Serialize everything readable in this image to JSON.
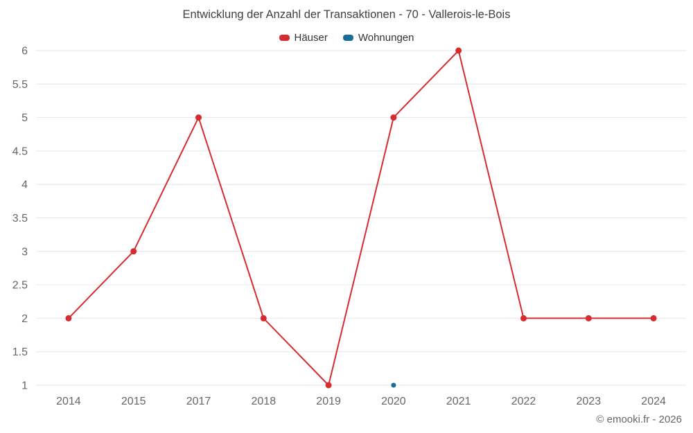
{
  "chart": {
    "title": "Entwicklung der Anzahl der Transaktionen - 70 - Vallerois-le-Bois",
    "footer": "© emooki.fr - 2026"
  },
  "chart_data": {
    "type": "line",
    "title": "Entwicklung der Anzahl der Transaktionen - 70 - Vallerois-le-Bois",
    "categories": [
      "2014",
      "2015",
      "2017",
      "2018",
      "2019",
      "2020",
      "2021",
      "2022",
      "2023",
      "2024"
    ],
    "series": [
      {
        "name": "Häuser",
        "color": "#d62b2f",
        "values": [
          2,
          3,
          5,
          2,
          1,
          5,
          6,
          2,
          2,
          2
        ]
      },
      {
        "name": "Wohnungen",
        "color": "#1b6d99",
        "values": [
          null,
          null,
          null,
          null,
          null,
          1,
          null,
          null,
          null,
          null
        ]
      }
    ],
    "xlabel": "",
    "ylabel": "",
    "ylim": [
      1,
      6
    ],
    "ytick_step": 0.5,
    "grid": true,
    "legend_position": "top",
    "grid_color": "#e6e6e6",
    "axis_label_color": "#666666"
  }
}
